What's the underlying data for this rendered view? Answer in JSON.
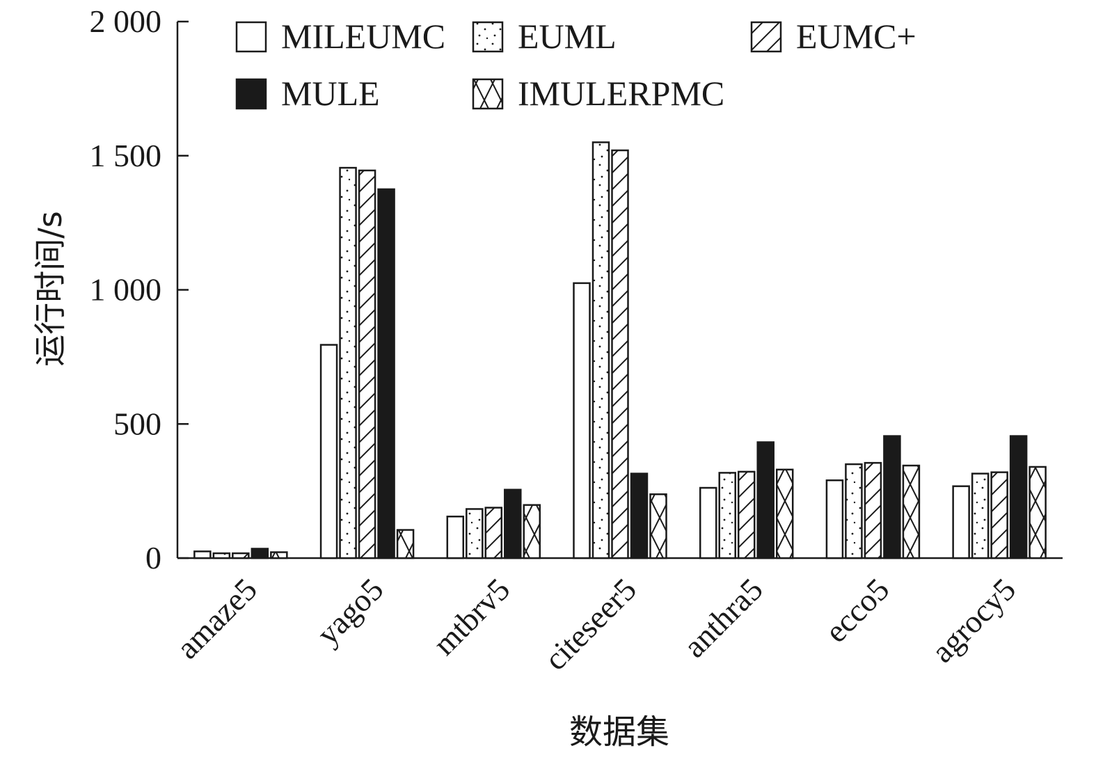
{
  "chart_data": {
    "type": "bar",
    "ylabel": "运行时间/s",
    "xlabel": "数据集",
    "ylim": [
      0,
      2000
    ],
    "yticks": [
      0,
      500,
      1000,
      1500,
      2000
    ],
    "ytick_labels": [
      "0",
      "500",
      "1 000",
      "1 500",
      "2 000"
    ],
    "categories": [
      "amaze5",
      "yago5",
      "mtbrv5",
      "citeseer5",
      "anthra5",
      "ecco5",
      "agrocy5"
    ],
    "legend_position": "top",
    "grid": false,
    "series": [
      {
        "name": "MILEUMC",
        "pattern": "empty",
        "values": [
          25,
          795,
          155,
          1025,
          262,
          290,
          268
        ]
      },
      {
        "name": "EUML",
        "pattern": "dots",
        "values": [
          18,
          1455,
          183,
          1550,
          318,
          350,
          315
        ]
      },
      {
        "name": "EUMC+",
        "pattern": "hatch",
        "values": [
          18,
          1445,
          188,
          1520,
          322,
          355,
          320
        ]
      },
      {
        "name": "MULE",
        "pattern": "solid",
        "values": [
          35,
          1375,
          255,
          315,
          432,
          455,
          455
        ]
      },
      {
        "name": "IMULERPMC",
        "pattern": "cross",
        "values": [
          22,
          105,
          198,
          238,
          330,
          345,
          340
        ]
      }
    ]
  },
  "colors": {
    "ink": "#1a1a1a",
    "background": "#ffffff"
  }
}
